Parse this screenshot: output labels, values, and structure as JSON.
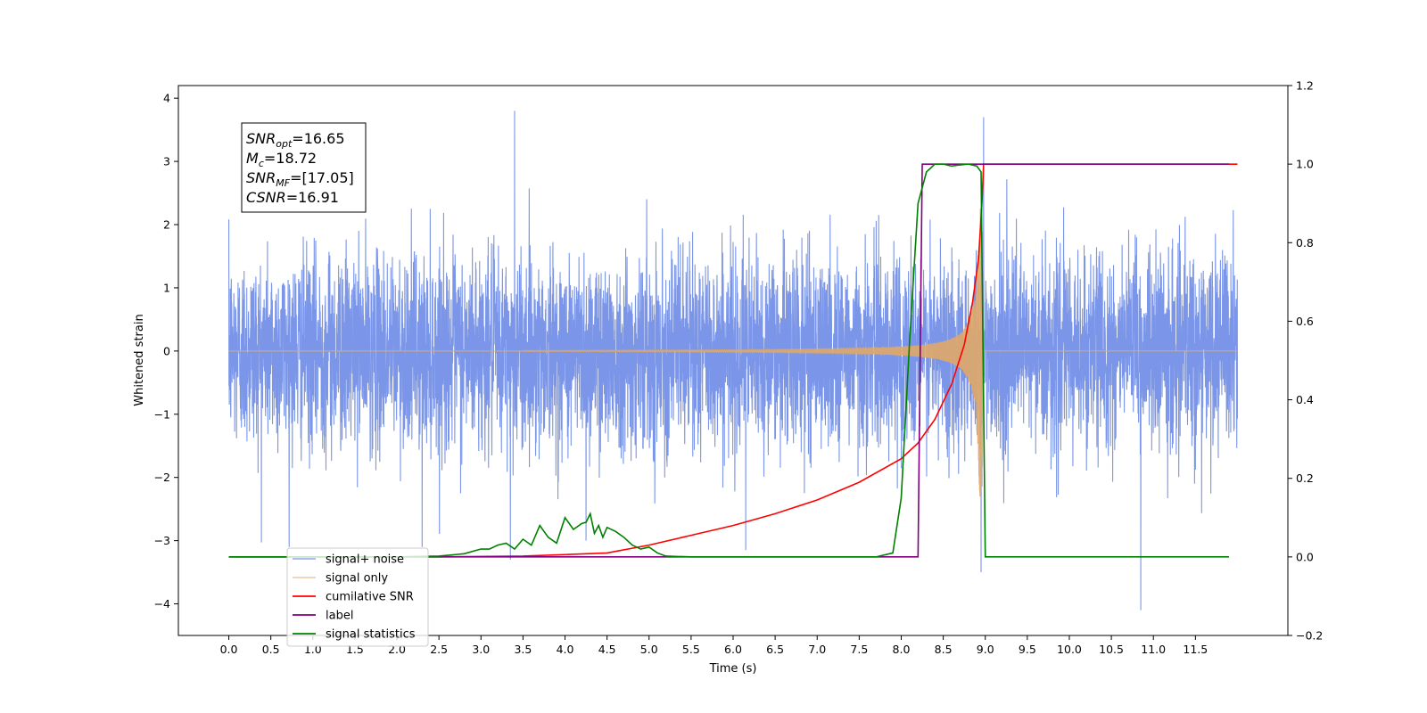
{
  "chart_data": {
    "type": "line",
    "title": "",
    "xlabel": "Time (s)",
    "ylabel": "Whitened strain",
    "y2label": "",
    "xlim": [
      -0.6,
      12.6
    ],
    "ylim": [
      -4.5,
      4.2
    ],
    "y2lim": [
      -0.2,
      1.2
    ],
    "xticks": [
      0.0,
      0.5,
      1.0,
      1.5,
      2.0,
      2.5,
      3.0,
      3.5,
      4.0,
      4.5,
      5.0,
      5.5,
      6.0,
      6.5,
      7.0,
      7.5,
      8.0,
      8.5,
      9.0,
      9.5,
      10.0,
      10.5,
      11.0,
      11.5
    ],
    "xtick_labels": [
      "0.0",
      "0.5",
      "1.0",
      "1.5",
      "2.0",
      "2.5",
      "3.0",
      "3.5",
      "4.0",
      "4.5",
      "5.0",
      "5.5",
      "6.0",
      "6.5",
      "7.0",
      "7.5",
      "8.0",
      "8.5",
      "9.0",
      "9.5",
      "10.0",
      "10.5",
      "11.0",
      "11.5"
    ],
    "yticks": [
      -4,
      -3,
      -2,
      -1,
      0,
      1,
      2,
      3,
      4
    ],
    "ytick_labels": [
      "−4",
      "−3",
      "−2",
      "−1",
      "0",
      "1",
      "2",
      "3",
      "4"
    ],
    "y2ticks": [
      -0.2,
      0.0,
      0.2,
      0.4,
      0.6,
      0.8,
      1.0,
      1.2
    ],
    "y2tick_labels": [
      "−0.2",
      "0.0",
      "0.2",
      "0.4",
      "0.6",
      "0.8",
      "1.0",
      "1.2"
    ],
    "grid": false,
    "legend_position": "lower-left",
    "annotation": {
      "lines": [
        {
          "base": "SNR",
          "sub": "opt",
          "rest": "=16.65"
        },
        {
          "base": "M",
          "sub": "c",
          "rest": "=18.72"
        },
        {
          "base": "SNR",
          "sub": "MF",
          "rest": "=[17.05]"
        },
        {
          "base": "CSNR",
          "sub": "",
          "rest": "=16.91"
        }
      ]
    },
    "series": [
      {
        "name": "signal+ noise",
        "axis": "left",
        "color": "#7b96e8",
        "style": "noise",
        "t_start": 0.0,
        "t_end": 12.0,
        "amplitude": 1.0,
        "peak_values": [
          [
            3.4,
            3.8
          ],
          [
            8.98,
            3.7
          ],
          [
            10.85,
            -4.1
          ],
          [
            2.3,
            -3.1
          ],
          [
            3.35,
            -3.3
          ],
          [
            6.15,
            -3.15
          ],
          [
            8.95,
            -3.5
          ],
          [
            4.25,
            -3.0
          ]
        ]
      },
      {
        "name": "signal only",
        "axis": "left",
        "color": "#e0a868",
        "style": "chirp",
        "t_start": 0.0,
        "t_merger": 8.97,
        "t_end": 12.0,
        "peak_amplitude": 2.3
      },
      {
        "name": "cumilative SNR",
        "axis": "right",
        "color": "#ff0000",
        "x": [
          0.0,
          2.5,
          3.5,
          4.5,
          5.0,
          5.5,
          6.0,
          6.5,
          7.0,
          7.5,
          8.0,
          8.2,
          8.4,
          8.6,
          8.75,
          8.85,
          8.92,
          8.96,
          8.98,
          9.5,
          10.0,
          11.0,
          12.0
        ],
        "values": [
          0.0,
          0.0,
          0.002,
          0.01,
          0.03,
          0.055,
          0.08,
          0.11,
          0.145,
          0.19,
          0.25,
          0.29,
          0.35,
          0.44,
          0.54,
          0.65,
          0.76,
          0.9,
          1.0,
          1.0,
          1.0,
          1.0,
          1.0
        ]
      },
      {
        "name": "label",
        "axis": "right",
        "color": "#800080",
        "x": [
          0.0,
          8.2,
          8.25,
          8.96,
          8.97,
          9.0,
          11.9
        ],
        "values": [
          0.0,
          0.0,
          1.0,
          1.0,
          1.0,
          1.0,
          1.0
        ]
      },
      {
        "name": "signal statistics",
        "axis": "right",
        "color": "#008000",
        "x": [
          0.0,
          2.0,
          2.5,
          2.8,
          3.0,
          3.1,
          3.2,
          3.3,
          3.4,
          3.5,
          3.6,
          3.7,
          3.8,
          3.9,
          4.0,
          4.1,
          4.2,
          4.25,
          4.3,
          4.35,
          4.4,
          4.45,
          4.5,
          4.6,
          4.7,
          4.8,
          4.9,
          5.0,
          5.1,
          5.2,
          5.5,
          6.0,
          7.0,
          7.7,
          7.9,
          8.0,
          8.1,
          8.2,
          8.3,
          8.4,
          8.5,
          8.6,
          8.7,
          8.8,
          8.9,
          8.95,
          9.0,
          9.1,
          11.9
        ],
        "values": [
          0.0,
          0.0,
          0.002,
          0.008,
          0.02,
          0.02,
          0.03,
          0.035,
          0.02,
          0.045,
          0.03,
          0.08,
          0.05,
          0.035,
          0.1,
          0.07,
          0.085,
          0.088,
          0.11,
          0.06,
          0.08,
          0.05,
          0.075,
          0.065,
          0.05,
          0.03,
          0.02,
          0.025,
          0.01,
          0.002,
          0.0,
          0.0,
          0.0,
          0.0,
          0.01,
          0.15,
          0.55,
          0.9,
          0.98,
          1.0,
          1.0,
          0.995,
          0.998,
          1.0,
          0.995,
          0.98,
          0.0,
          0.0,
          0.0
        ]
      }
    ]
  }
}
